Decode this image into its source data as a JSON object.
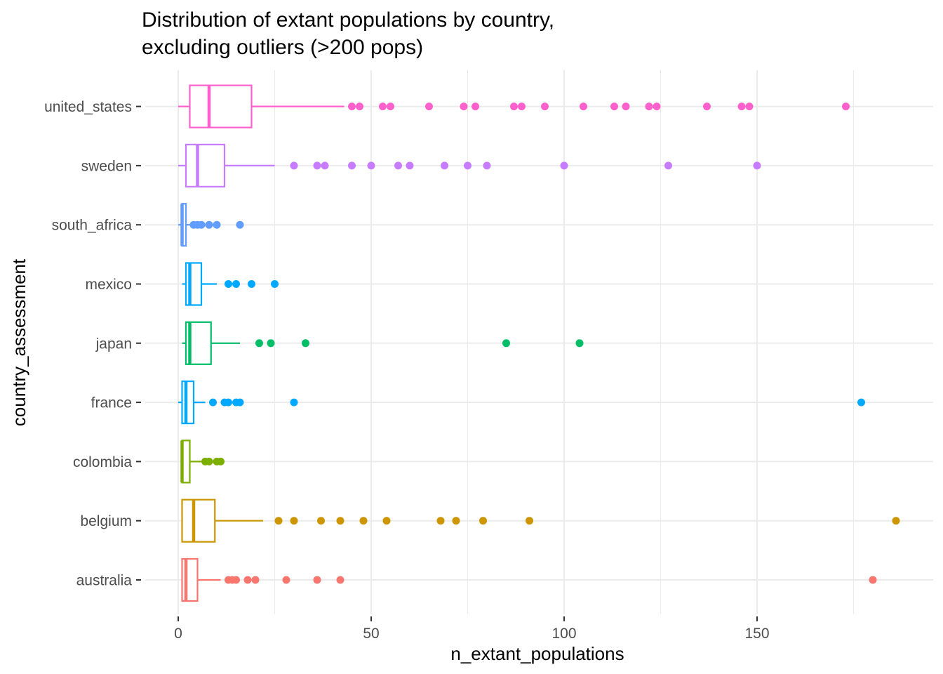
{
  "chart_data": {
    "type": "boxplot",
    "title_lines": [
      "Distribution of extant populations by country,",
      "excluding outliers (>200 pops)"
    ],
    "xlabel": "n_extant_populations",
    "ylabel": "country_assessment",
    "xlim": [
      0,
      190
    ],
    "x_ticks": [
      0,
      50,
      100,
      150
    ],
    "grid": true,
    "categories": [
      {
        "name": "australia",
        "color": "#F8766D",
        "box": {
          "min": 1,
          "q1": 1,
          "median": 2,
          "q3": 5,
          "max": 11
        },
        "outliers": [
          13,
          14,
          15,
          18,
          20,
          28,
          36,
          42,
          180
        ]
      },
      {
        "name": "belgium",
        "color": "#CD9600",
        "box": {
          "min": 1,
          "q1": 1,
          "median": 4,
          "q3": 9.5,
          "max": 22
        },
        "outliers": [
          26,
          30,
          37,
          42,
          48,
          54,
          68,
          72,
          79,
          91,
          186
        ]
      },
      {
        "name": "colombia",
        "color": "#7CAE00",
        "box": {
          "min": 1,
          "q1": 1,
          "median": 1,
          "q3": 3,
          "max": 6
        },
        "outliers": [
          7,
          8,
          10,
          11
        ]
      },
      {
        "name": "france",
        "color": "#00A9FF",
        "box": {
          "min": 0,
          "q1": 1,
          "median": 2,
          "q3": 4,
          "max": 7
        },
        "outliers": [
          9,
          12,
          13,
          15,
          16,
          30,
          177
        ]
      },
      {
        "name": "japan",
        "color": "#00BE67",
        "box": {
          "min": 1,
          "q1": 2,
          "median": 3,
          "q3": 8.5,
          "max": 16
        },
        "outliers": [
          21,
          24,
          33,
          85,
          104
        ]
      },
      {
        "name": "mexico",
        "color": "#00A9FF",
        "box": {
          "min": 1,
          "q1": 2,
          "median": 3,
          "q3": 6,
          "max": 10
        },
        "outliers": [
          13,
          15,
          19,
          25
        ]
      },
      {
        "name": "south_africa",
        "color": "#619CFF",
        "box": {
          "min": 0,
          "q1": 1,
          "median": 1,
          "q3": 2,
          "max": 3
        },
        "outliers": [
          4,
          5,
          6,
          8,
          10,
          16
        ]
      },
      {
        "name": "sweden",
        "color": "#C77CFF",
        "box": {
          "min": 0,
          "q1": 2,
          "median": 5,
          "q3": 12,
          "max": 25
        },
        "outliers": [
          30,
          36,
          38,
          45,
          50,
          57,
          60,
          69,
          75,
          80,
          100,
          127,
          150
        ]
      },
      {
        "name": "united_states",
        "color": "#FF61CC",
        "box": {
          "min": 0,
          "q1": 3,
          "median": 8,
          "q3": 19,
          "max": 43
        },
        "outliers": [
          45,
          47,
          53,
          55,
          65,
          74,
          77,
          87,
          89,
          95,
          105,
          113,
          116,
          122,
          124,
          137,
          146,
          148,
          173
        ]
      }
    ]
  }
}
